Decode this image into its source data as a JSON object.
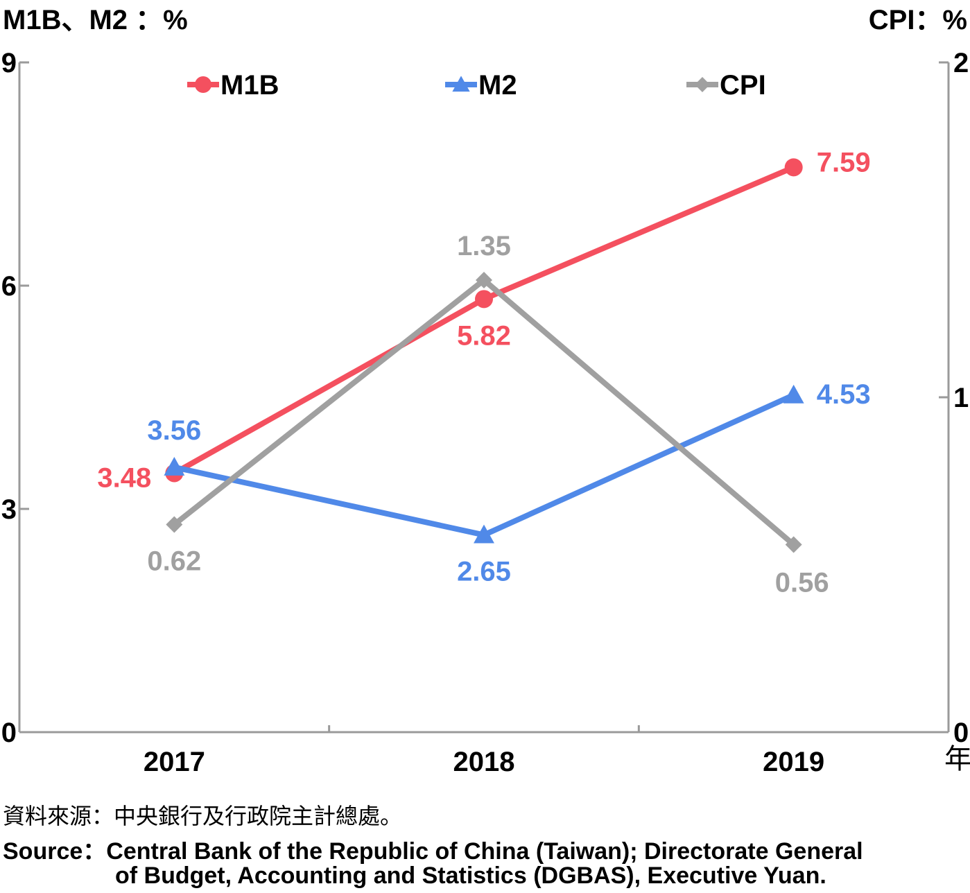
{
  "chart_data": {
    "type": "line",
    "left_axis_title": "M1B、M2 ：%",
    "right_axis_title": "CPI：%",
    "x_unit": "年",
    "categories": [
      "2017",
      "2018",
      "2019"
    ],
    "left_ylim": [
      0,
      9
    ],
    "left_ticks": [
      "0",
      "3",
      "6",
      "9"
    ],
    "right_ylim": [
      0,
      2
    ],
    "right_ticks": [
      "0",
      "1",
      "2"
    ],
    "legend_position": "top",
    "series": [
      {
        "name": "M1B",
        "axis": "left",
        "marker": "circle",
        "color": "#F4505F",
        "values": [
          3.48,
          5.82,
          7.59
        ],
        "labels": [
          "3.48",
          "5.82",
          "7.59"
        ]
      },
      {
        "name": "M2",
        "axis": "left",
        "marker": "triangle",
        "color": "#5089E8",
        "values": [
          3.56,
          2.65,
          4.53
        ],
        "labels": [
          "3.56",
          "2.65",
          "4.53"
        ]
      },
      {
        "name": "CPI",
        "axis": "right",
        "marker": "diamond",
        "color": "#A0A0A0",
        "values": [
          0.62,
          1.35,
          0.56
        ],
        "labels": [
          "0.62",
          "1.35",
          "0.56"
        ]
      }
    ]
  },
  "source": {
    "zh": "資料來源：中央銀行及行政院主計總處。",
    "en_line1": "Source：Central Bank of the Republic of China (Taiwan); Directorate General",
    "en_line2": "of Budget, Accounting and Statistics (DGBAS), Executive Yuan."
  }
}
